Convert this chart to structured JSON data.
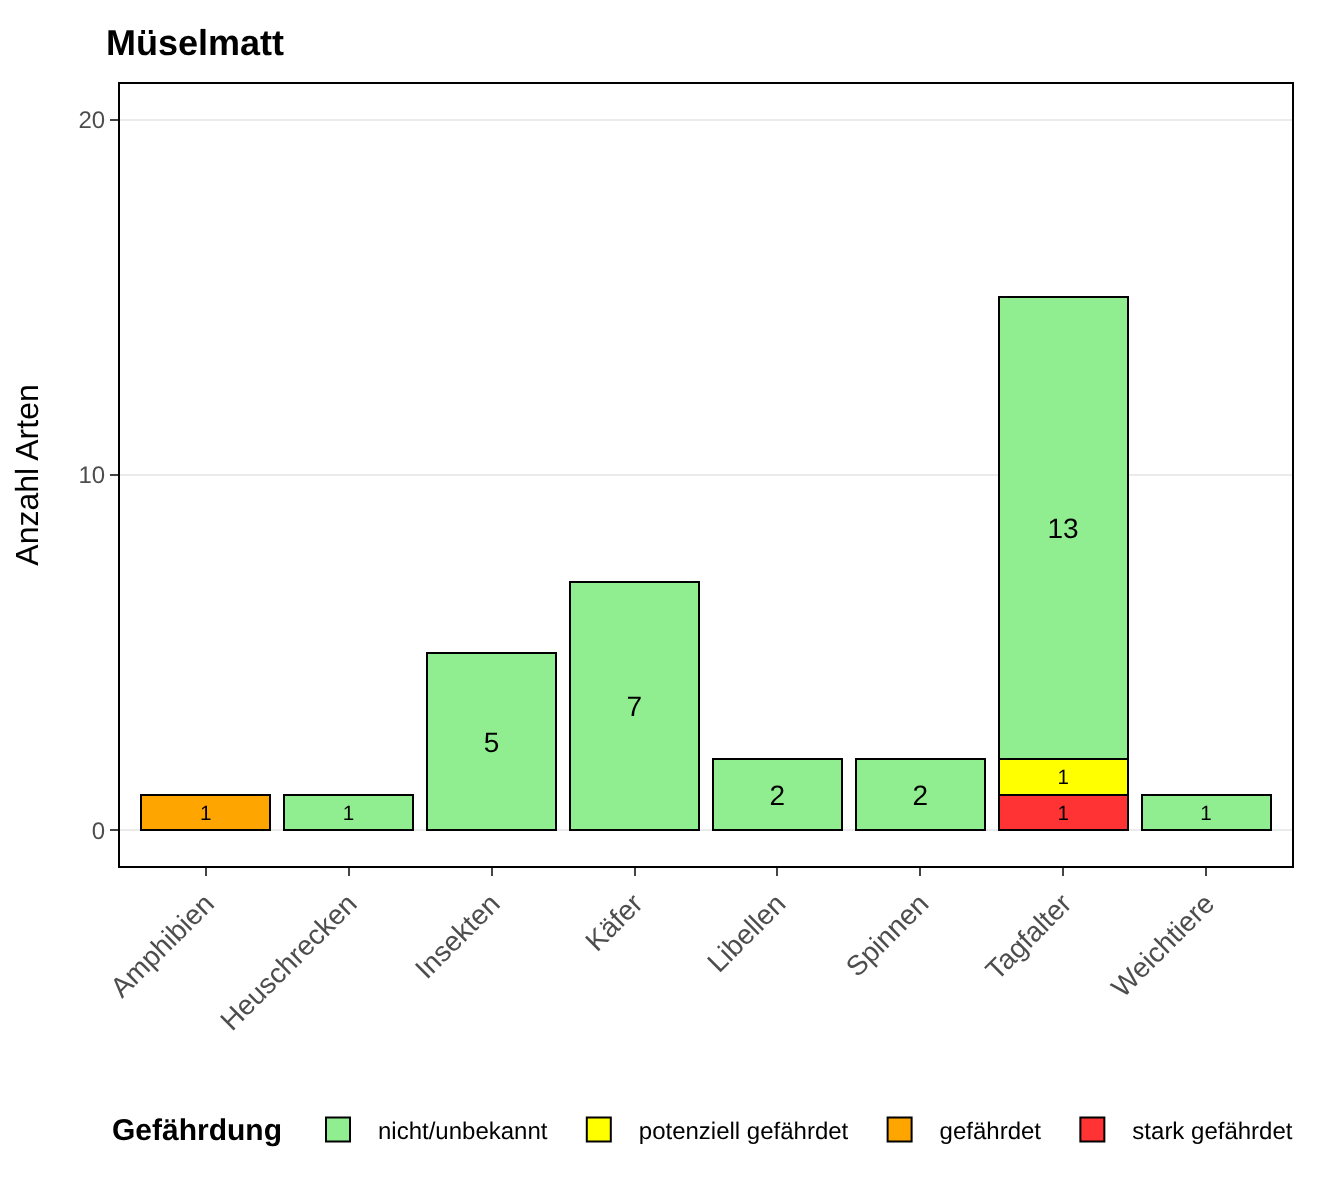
{
  "chart_data": {
    "type": "bar",
    "title": "Müselmatt",
    "ylabel": "Anzahl Arten",
    "legend_title": "Gefährdung",
    "categories": [
      "Amphibien",
      "Heuschrecken",
      "Insekten",
      "Käfer",
      "Libellen",
      "Spinnen",
      "Tagfalter",
      "Weichtiere"
    ],
    "stacked": true,
    "ylim": [
      -1,
      21
    ],
    "yticks": [
      0,
      10,
      20
    ],
    "grid": "y",
    "legend": "bottom",
    "data_labels": true,
    "series": [
      {
        "name": "stark gefährdet",
        "color": "#ff3333",
        "values": [
          null,
          null,
          null,
          null,
          null,
          null,
          1,
          null
        ]
      },
      {
        "name": "gefährdet",
        "color": "#ffa500",
        "values": [
          1,
          null,
          null,
          null,
          null,
          null,
          null,
          null
        ]
      },
      {
        "name": "potenziell gefährdet",
        "color": "#ffff00",
        "values": [
          null,
          null,
          null,
          null,
          null,
          null,
          1,
          null
        ]
      },
      {
        "name": "nicht/unbekannt",
        "color": "#90ee90",
        "values": [
          null,
          1,
          5,
          7,
          2,
          2,
          13,
          1
        ]
      }
    ]
  }
}
